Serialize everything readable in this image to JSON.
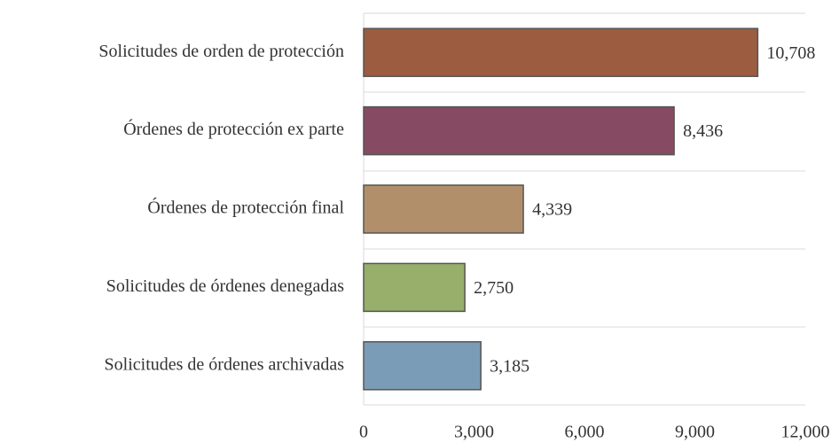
{
  "chart_data": {
    "type": "bar",
    "orientation": "horizontal",
    "categories": [
      "Solicitudes de orden de protección",
      "Órdenes  de protección ex parte",
      "Órdenes de protección final",
      "Solicitudes de órdenes denegadas",
      "Solicitudes de órdenes archivadas"
    ],
    "values": [
      10708,
      8436,
      4339,
      2750,
      3185
    ],
    "value_labels": [
      "10,708",
      "8,436",
      "4,339",
      "2,750",
      "3,185"
    ],
    "colors": [
      "#9b5c40",
      "#874a63",
      "#b18f6a",
      "#97af6a",
      "#7b9cb6"
    ],
    "xlim": [
      0,
      12000
    ],
    "xticks": [
      0,
      {
        "value": 3000,
        "label": "3,000"
      },
      {
        "value": 6000,
        "label": "6,000"
      },
      {
        "value": 9000,
        "label": "9,000"
      },
      {
        "value": 12000,
        "label": "12,000"
      }
    ],
    "grid": false
  }
}
